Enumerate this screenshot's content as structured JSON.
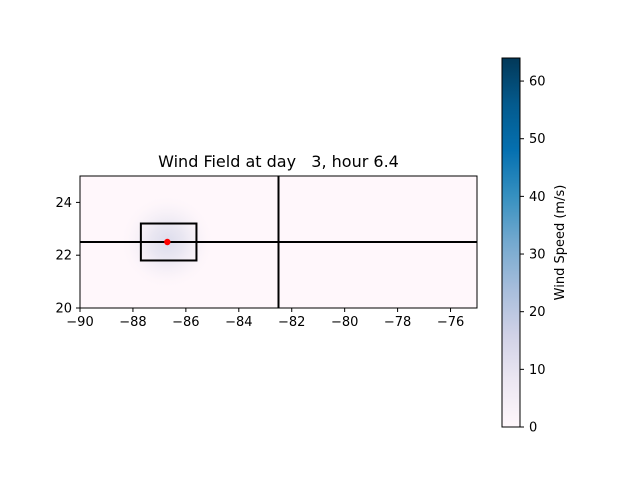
{
  "chart_data": {
    "type": "heatmap",
    "title": "Wind Field at day   3, hour 6.4",
    "xlabel": "",
    "ylabel": "",
    "xlim": [
      -90,
      -75
    ],
    "ylim": [
      20,
      25
    ],
    "x_ticks": [
      -90,
      -88,
      -86,
      -84,
      -82,
      -80,
      -78,
      -76
    ],
    "x_tick_labels": [
      "−90",
      "−88",
      "−86",
      "−84",
      "−82",
      "−80",
      "−78",
      "−76"
    ],
    "y_ticks": [
      20,
      22,
      24
    ],
    "y_tick_labels": [
      "20",
      "22",
      "24"
    ],
    "colorbar": {
      "label": "Wind Speed (m/s)",
      "range": [
        0,
        64
      ],
      "ticks": [
        0,
        10,
        20,
        30,
        40,
        50,
        60
      ],
      "tick_labels": [
        "0",
        "10",
        "20",
        "30",
        "40",
        "50",
        "60"
      ],
      "colormap": "PuBu"
    },
    "storm_center": {
      "lon": -86.7,
      "lat": 22.5,
      "color": "#ff0000"
    },
    "field_peak_speed": 15,
    "field_radius_deg": 1.8,
    "vertical_line_lon": -82.5,
    "horizontal_line_lat": 22.5,
    "box": {
      "lon_min": -87.7,
      "lon_max": -85.6,
      "lat_min": 21.8,
      "lat_max": 23.2
    }
  }
}
